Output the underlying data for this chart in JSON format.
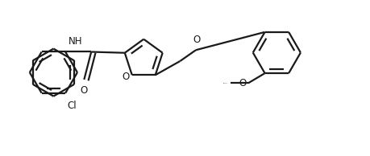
{
  "lc": "#1a1a1a",
  "lw": 1.6,
  "fs": 8.5,
  "figsize": [
    4.6,
    1.94
  ],
  "dpi": 100,
  "xlim": [
    0,
    9.2
  ],
  "ylim": [
    0,
    3.88
  ]
}
